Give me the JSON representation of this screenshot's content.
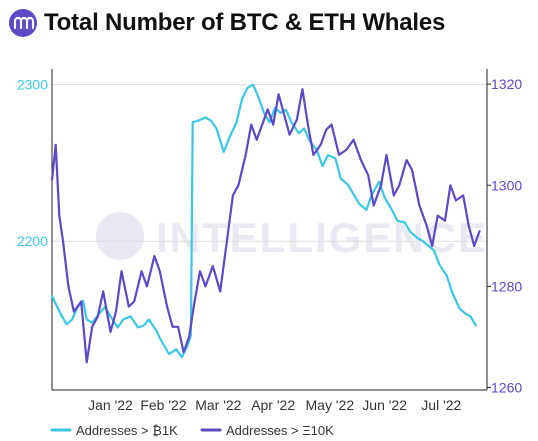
{
  "header": {
    "title": "Total Number of BTC & ETH Whales"
  },
  "watermark": {
    "text": "INTELLIGENCE"
  },
  "colors": {
    "btc": "#3cc6e6",
    "eth": "#5b49c6",
    "logo": "#5b49c6",
    "axis": "#222222",
    "grid": "#dddddd",
    "watermark": "#e9e9f3"
  },
  "chart_data": {
    "type": "line",
    "title": "Total Number of BTC & ETH Whales",
    "xlabel": "",
    "ylabel": "",
    "x_ticks": [
      "Jan '22",
      "Feb '22",
      "Mar '22",
      "Apr '22",
      "May '22",
      "Jun '22",
      "Jul '22"
    ],
    "x_domain": [
      "2021-12-15",
      "2022-08-10"
    ],
    "y_left": {
      "ticks": [
        "2200",
        "2300"
      ],
      "range": [
        2105,
        2310
      ],
      "color": "#3cc6e6"
    },
    "y_right": {
      "ticks": [
        "1260",
        "1280",
        "1300",
        "1320"
      ],
      "range": [
        1259.5,
        1323
      ],
      "color": "#5b49c6"
    },
    "grid": {
      "horizontal": true,
      "vertical": false
    },
    "legend": {
      "position": "bottom"
    },
    "series": [
      {
        "name": "Addresses > ₿1K",
        "axis": "left",
        "color": "#3cc6e6",
        "points": [
          [
            "2021-12-15",
            2165
          ],
          [
            "2021-12-17",
            2160
          ],
          [
            "2021-12-20",
            2153
          ],
          [
            "2021-12-23",
            2147
          ],
          [
            "2021-12-26",
            2150
          ],
          [
            "2021-12-29",
            2158
          ],
          [
            "2022-01-01",
            2162
          ],
          [
            "2022-01-03",
            2150
          ],
          [
            "2022-01-06",
            2148
          ],
          [
            "2022-01-10",
            2154
          ],
          [
            "2022-01-13",
            2158
          ],
          [
            "2022-01-16",
            2152
          ],
          [
            "2022-01-20",
            2145
          ],
          [
            "2022-01-23",
            2150
          ],
          [
            "2022-01-27",
            2152
          ],
          [
            "2022-01-31",
            2145
          ],
          [
            "2022-02-03",
            2146
          ],
          [
            "2022-02-06",
            2150
          ],
          [
            "2022-02-10",
            2143
          ],
          [
            "2022-02-13",
            2136
          ],
          [
            "2022-02-17",
            2128
          ],
          [
            "2022-02-21",
            2131
          ],
          [
            "2022-02-24",
            2126
          ],
          [
            "2022-02-27",
            2133
          ],
          [
            "2022-03-01",
            2140
          ],
          [
            "2022-03-02",
            2276
          ],
          [
            "2022-03-05",
            2277
          ],
          [
            "2022-03-09",
            2279
          ],
          [
            "2022-03-12",
            2277
          ],
          [
            "2022-03-15",
            2272
          ],
          [
            "2022-03-19",
            2257
          ],
          [
            "2022-03-22",
            2266
          ],
          [
            "2022-03-26",
            2276
          ],
          [
            "2022-03-29",
            2291
          ],
          [
            "2022-04-01",
            2298
          ],
          [
            "2022-04-04",
            2300
          ],
          [
            "2022-04-07",
            2292
          ],
          [
            "2022-04-10",
            2282
          ],
          [
            "2022-04-13",
            2276
          ],
          [
            "2022-04-16",
            2285
          ],
          [
            "2022-04-19",
            2282
          ],
          [
            "2022-04-22",
            2284
          ],
          [
            "2022-04-25",
            2276
          ],
          [
            "2022-04-29",
            2269
          ],
          [
            "2022-05-02",
            2272
          ],
          [
            "2022-05-05",
            2264
          ],
          [
            "2022-05-09",
            2258
          ],
          [
            "2022-05-12",
            2248
          ],
          [
            "2022-05-15",
            2255
          ],
          [
            "2022-05-19",
            2253
          ],
          [
            "2022-05-22",
            2240
          ],
          [
            "2022-05-26",
            2236
          ],
          [
            "2022-05-29",
            2230
          ],
          [
            "2022-06-01",
            2224
          ],
          [
            "2022-06-05",
            2220
          ],
          [
            "2022-06-08",
            2230
          ],
          [
            "2022-06-12",
            2238
          ],
          [
            "2022-06-15",
            2228
          ],
          [
            "2022-06-19",
            2220
          ],
          [
            "2022-06-22",
            2213
          ],
          [
            "2022-06-26",
            2212
          ],
          [
            "2022-06-29",
            2206
          ],
          [
            "2022-07-03",
            2202
          ],
          [
            "2022-07-06",
            2200
          ],
          [
            "2022-07-09",
            2197
          ],
          [
            "2022-07-12",
            2194
          ],
          [
            "2022-07-15",
            2185
          ],
          [
            "2022-07-19",
            2178
          ],
          [
            "2022-07-22",
            2167
          ],
          [
            "2022-07-26",
            2157
          ],
          [
            "2022-07-29",
            2154
          ],
          [
            "2022-08-01",
            2152
          ],
          [
            "2022-08-04",
            2146
          ]
        ]
      },
      {
        "name": "Addresses > Ξ10K",
        "axis": "right",
        "color": "#5b49c6",
        "points": [
          [
            "2021-12-15",
            1301
          ],
          [
            "2021-12-17",
            1308
          ],
          [
            "2021-12-19",
            1294
          ],
          [
            "2021-12-21",
            1289
          ],
          [
            "2021-12-24",
            1280
          ],
          [
            "2021-12-27",
            1275
          ],
          [
            "2021-12-31",
            1277
          ],
          [
            "2022-01-03",
            1265
          ],
          [
            "2022-01-06",
            1272
          ],
          [
            "2022-01-09",
            1274
          ],
          [
            "2022-01-12",
            1279
          ],
          [
            "2022-01-16",
            1271
          ],
          [
            "2022-01-19",
            1275
          ],
          [
            "2022-01-22",
            1283
          ],
          [
            "2022-01-26",
            1276
          ],
          [
            "2022-01-29",
            1277
          ],
          [
            "2022-02-02",
            1283
          ],
          [
            "2022-02-05",
            1280
          ],
          [
            "2022-02-09",
            1286
          ],
          [
            "2022-02-12",
            1283
          ],
          [
            "2022-02-16",
            1276
          ],
          [
            "2022-02-19",
            1272
          ],
          [
            "2022-02-22",
            1272
          ],
          [
            "2022-02-25",
            1267
          ],
          [
            "2022-02-28",
            1270
          ],
          [
            "2022-03-03",
            1277
          ],
          [
            "2022-03-06",
            1283
          ],
          [
            "2022-03-09",
            1280
          ],
          [
            "2022-03-13",
            1284
          ],
          [
            "2022-03-17",
            1279
          ],
          [
            "2022-03-20",
            1287
          ],
          [
            "2022-03-24",
            1298
          ],
          [
            "2022-03-27",
            1300
          ],
          [
            "2022-03-31",
            1306
          ],
          [
            "2022-04-03",
            1312
          ],
          [
            "2022-04-06",
            1309
          ],
          [
            "2022-04-09",
            1312
          ],
          [
            "2022-04-12",
            1315
          ],
          [
            "2022-04-15",
            1312
          ],
          [
            "2022-04-18",
            1318
          ],
          [
            "2022-04-21",
            1314
          ],
          [
            "2022-04-24",
            1310
          ],
          [
            "2022-04-28",
            1313
          ],
          [
            "2022-05-01",
            1319
          ],
          [
            "2022-05-04",
            1312
          ],
          [
            "2022-05-07",
            1306
          ],
          [
            "2022-05-11",
            1308
          ],
          [
            "2022-05-14",
            1311
          ],
          [
            "2022-05-17",
            1312
          ],
          [
            "2022-05-21",
            1306
          ],
          [
            "2022-05-25",
            1307
          ],
          [
            "2022-05-29",
            1309
          ],
          [
            "2022-06-02",
            1305
          ],
          [
            "2022-06-06",
            1302
          ],
          [
            "2022-06-09",
            1296
          ],
          [
            "2022-06-13",
            1300
          ],
          [
            "2022-06-16",
            1306
          ],
          [
            "2022-06-20",
            1298
          ],
          [
            "2022-06-23",
            1300
          ],
          [
            "2022-06-27",
            1305
          ],
          [
            "2022-06-30",
            1303
          ],
          [
            "2022-07-04",
            1296
          ],
          [
            "2022-07-08",
            1292
          ],
          [
            "2022-07-11",
            1288
          ],
          [
            "2022-07-14",
            1294
          ],
          [
            "2022-07-18",
            1293
          ],
          [
            "2022-07-21",
            1300
          ],
          [
            "2022-07-24",
            1297
          ],
          [
            "2022-07-28",
            1298
          ],
          [
            "2022-07-31",
            1292
          ],
          [
            "2022-08-03",
            1288
          ],
          [
            "2022-08-06",
            1291
          ]
        ]
      }
    ]
  }
}
